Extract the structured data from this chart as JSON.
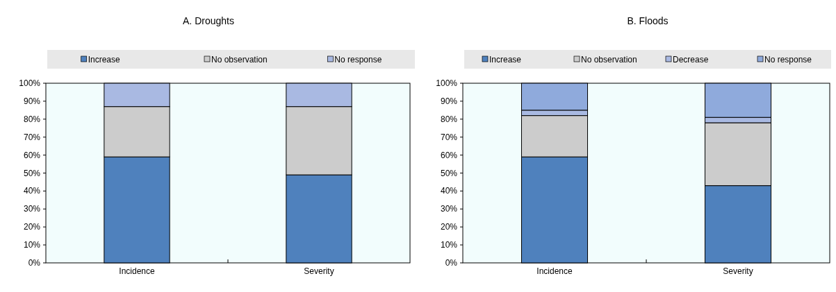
{
  "chart_data": [
    {
      "type": "bar",
      "title": "A. Droughts",
      "stacked": true,
      "legend": "top",
      "categories": [
        "Incidence",
        "Severity"
      ],
      "ylim": [
        0,
        100
      ],
      "yticks": [
        {
          "value": 0,
          "label": "0%"
        },
        {
          "value": 10,
          "label": "10%"
        },
        {
          "value": 20,
          "label": "20%"
        },
        {
          "value": 30,
          "label": "30%"
        },
        {
          "value": 40,
          "label": "40%"
        },
        {
          "value": 50,
          "label": "50%"
        },
        {
          "value": 60,
          "label": "60%"
        },
        {
          "value": 70,
          "label": "70%"
        },
        {
          "value": 80,
          "label": "80%"
        },
        {
          "value": 90,
          "label": "90%"
        },
        {
          "value": 100,
          "label": "100%"
        }
      ],
      "series": [
        {
          "name": "Increase",
          "color": "#4f81bd",
          "values": [
            59,
            49
          ]
        },
        {
          "name": "No observation",
          "color": "#cccccc",
          "values": [
            28,
            38
          ]
        },
        {
          "name": "No response",
          "color": "#a9b9e2",
          "values": [
            13,
            13
          ]
        }
      ]
    },
    {
      "type": "bar",
      "title": "B. Floods",
      "stacked": true,
      "legend": "top",
      "categories": [
        "Incidence",
        "Severity"
      ],
      "ylim": [
        0,
        100
      ],
      "yticks": [
        {
          "value": 0,
          "label": "0%"
        },
        {
          "value": 10,
          "label": "10%"
        },
        {
          "value": 20,
          "label": "20%"
        },
        {
          "value": 30,
          "label": "30%"
        },
        {
          "value": 40,
          "label": "40%"
        },
        {
          "value": 50,
          "label": "50%"
        },
        {
          "value": 60,
          "label": "60%"
        },
        {
          "value": 70,
          "label": "70%"
        },
        {
          "value": 80,
          "label": "80%"
        },
        {
          "value": 90,
          "label": "90%"
        },
        {
          "value": 100,
          "label": "100%"
        }
      ],
      "series": [
        {
          "name": "Increase",
          "color": "#4f81bd",
          "values": [
            59,
            43
          ]
        },
        {
          "name": "No observation",
          "color": "#cccccc",
          "values": [
            23,
            35
          ]
        },
        {
          "name": "Decrease",
          "color": "#a9b9e2",
          "values": [
            3,
            3
          ]
        },
        {
          "name": "No response",
          "color": "#8faadc",
          "values": [
            15,
            19
          ]
        }
      ]
    }
  ]
}
